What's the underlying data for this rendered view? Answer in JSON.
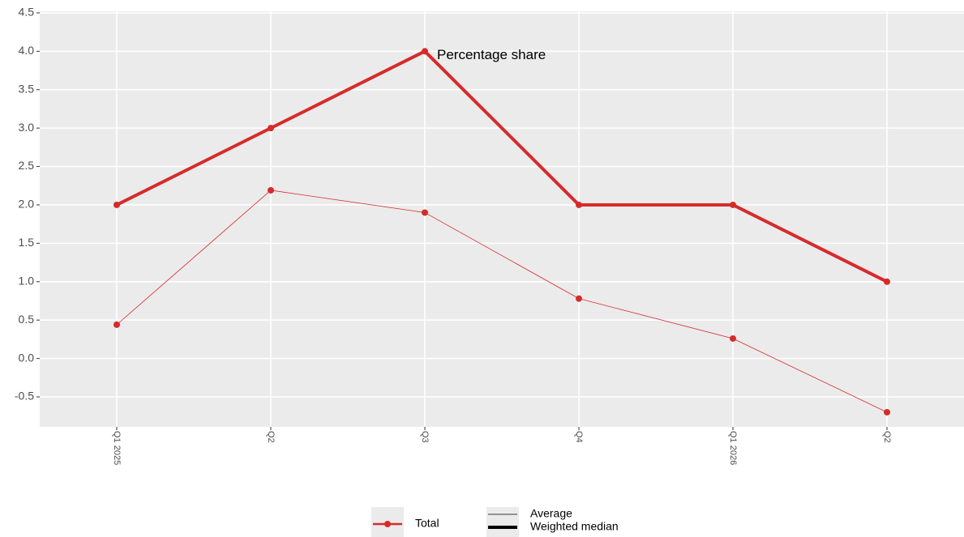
{
  "chart_data": {
    "type": "line",
    "categories": [
      "Q1 2025",
      "Q2",
      "Q3",
      "Q4",
      "Q1 2026",
      "Q2"
    ],
    "series": [
      {
        "name": "Average",
        "color": "#d62b2b",
        "line_width": 0.8,
        "values": [
          0.44,
          2.19,
          1.9,
          0.78,
          0.26,
          -0.7
        ]
      },
      {
        "name": "Weighted median",
        "color": "#d62b2b",
        "line_width": 4,
        "values": [
          2,
          3,
          4,
          2,
          2,
          1
        ]
      }
    ],
    "color_legend": [
      {
        "name": "Total",
        "color": "#d62b2b"
      }
    ],
    "annotations": [
      {
        "text": "Percentage share",
        "x": "Q3",
        "y": 4
      }
    ],
    "ylim": [
      -0.89,
      4.52
    ],
    "yticks": [
      {
        "value": -0.5,
        "label": "-0.5"
      },
      {
        "value": 0,
        "label": "0.0"
      },
      {
        "value": 0.5,
        "label": "0.5"
      },
      {
        "value": 1,
        "label": "1.0"
      },
      {
        "value": 1.5,
        "label": "1.5"
      },
      {
        "value": 2,
        "label": "2.0"
      },
      {
        "value": 2.5,
        "label": "2.5"
      },
      {
        "value": 3,
        "label": "3.0"
      },
      {
        "value": 3.5,
        "label": "3.5"
      },
      {
        "value": 4,
        "label": "4.0"
      },
      {
        "value": 4.5,
        "label": "4.5"
      }
    ],
    "grid": true
  }
}
